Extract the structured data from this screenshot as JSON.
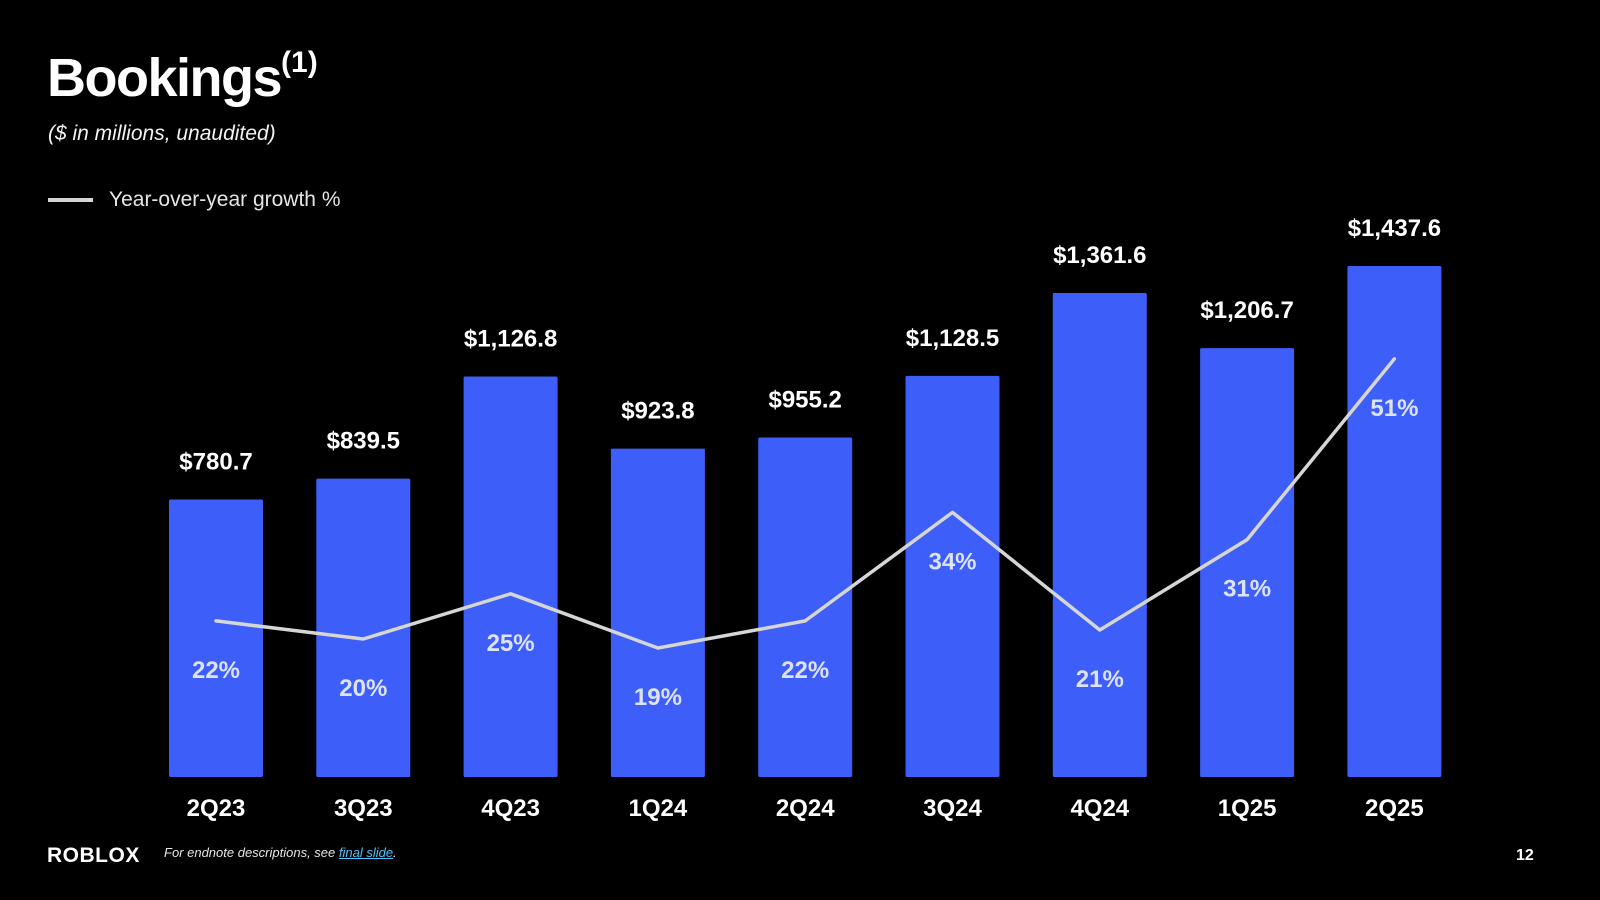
{
  "header": {
    "title": "Bookings",
    "title_sup": "(1)",
    "subtitle": "($ in millions, unaudited)"
  },
  "legend": {
    "line_label": "Year-over-year growth %",
    "line_color": "#d6d6d6"
  },
  "colors": {
    "bar": "#3d5ef8",
    "background": "#000000",
    "growth_label": "#dde3ff"
  },
  "footer": {
    "logo": "ROBLOX",
    "note_prefix": "For endnote descriptions, see ",
    "note_link": "final slide",
    "note_suffix": ".",
    "page_number": "12"
  },
  "chart_data": {
    "type": "bar",
    "title": "Bookings",
    "categories": [
      "2Q23",
      "3Q23",
      "4Q23",
      "1Q24",
      "2Q24",
      "3Q24",
      "4Q24",
      "1Q25",
      "2Q25"
    ],
    "series": [
      {
        "type": "bar",
        "values": [
          780.7,
          839.5,
          1126.8,
          923.8,
          955.2,
          1128.5,
          1361.6,
          1206.7,
          1437.6
        ],
        "labels": [
          "$780.7",
          "$839.5",
          "$1,126.8",
          "$923.8",
          "$955.2",
          "$1,128.5",
          "$1,361.6",
          "$1,206.7",
          "$1,437.6"
        ]
      },
      {
        "name": "Year-over-year growth %",
        "type": "line",
        "values": [
          22,
          20,
          25,
          19,
          22,
          34,
          21,
          31,
          51
        ],
        "labels": [
          "22%",
          "20%",
          "25%",
          "19%",
          "22%",
          "34%",
          "21%",
          "31%",
          "51%"
        ]
      }
    ],
    "ylim": [
      0,
      1437.6
    ],
    "grid": false,
    "legend_position": "top-left"
  }
}
